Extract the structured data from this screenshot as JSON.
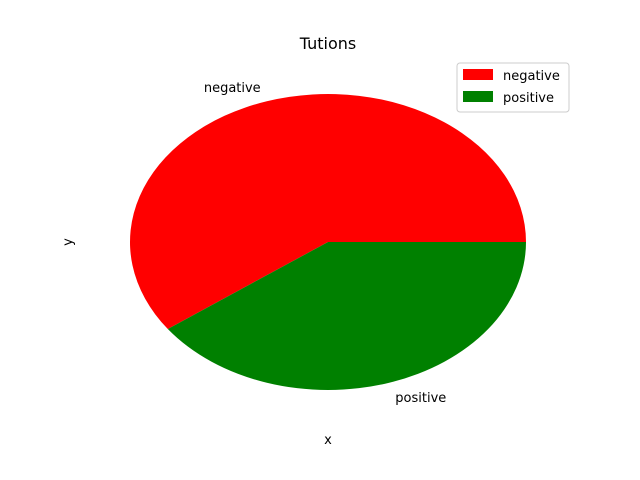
{
  "chart_data": {
    "type": "pie",
    "title": "Tutions",
    "xlabel": "x",
    "ylabel": "y",
    "categories": [
      "negative",
      "positive"
    ],
    "values": [
      60,
      40
    ],
    "colors": [
      "#ff0000",
      "#008000"
    ],
    "legend": {
      "placement": "top-right",
      "entries": [
        "negative",
        "positive"
      ]
    },
    "grid": false
  }
}
